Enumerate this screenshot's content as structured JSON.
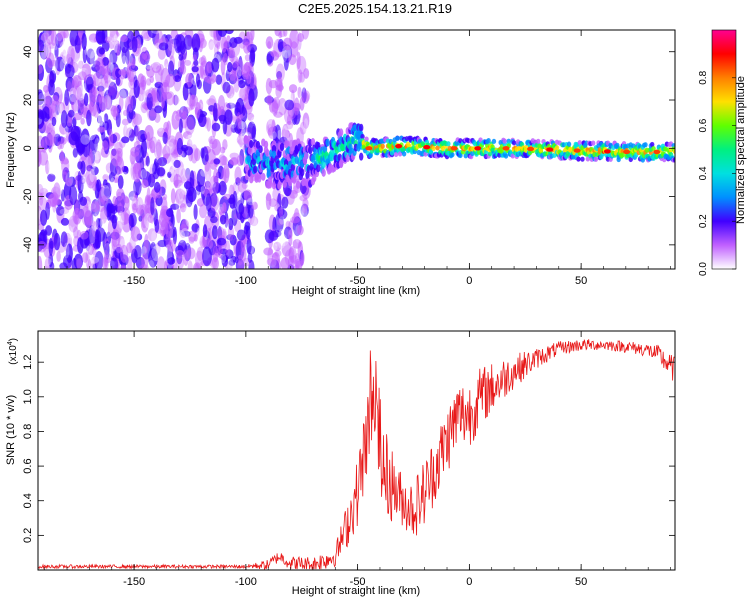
{
  "title": "C2E5.2025.154.13.21.R19",
  "chart_data": [
    {
      "type": "heatmap",
      "xlabel": "Height of straight line (km)",
      "ylabel": "Frequency (Hz)",
      "xlim": [
        -193,
        92
      ],
      "ylim": [
        -50,
        49
      ],
      "xticks": [
        -150,
        -100,
        -50,
        0,
        50
      ],
      "yticks": [
        -40,
        -20,
        0,
        20,
        40
      ],
      "colorbar": {
        "label": "Normalized spectral amplitude",
        "range": [
          0,
          1
        ],
        "ticks": [
          "0.0",
          "0.2",
          "0.4",
          "0.6",
          "0.8"
        ],
        "colors": [
          "#ffffff",
          "#c060ff",
          "#4000ff",
          "#0090ff",
          "#00e0e0",
          "#00f080",
          "#60ff00",
          "#ffe000",
          "#ff8000",
          "#ff0000",
          "#ff0090"
        ]
      },
      "regions": [
        {
          "x": [
            -193,
            -96
          ],
          "y": [
            -50,
            49
          ],
          "amplitude": 0.2,
          "desc": "scattered noise"
        },
        {
          "x": [
            -90,
            -72
          ],
          "y": [
            -50,
            49
          ],
          "amplitude": 0.15
        },
        {
          "x": [
            -95,
            -70
          ],
          "y": [
            -10,
            5
          ],
          "amplitude": 0.35
        },
        {
          "x": [
            -70,
            -48
          ],
          "y": [
            -5,
            8
          ],
          "amplitude": 0.45
        },
        {
          "x": [
            -48,
            92
          ],
          "y": [
            -3,
            3
          ],
          "amplitude": 0.8
        }
      ],
      "ridge": [
        [
          -193,
          -12
        ],
        [
          -150,
          -8
        ],
        [
          -100,
          -5
        ],
        [
          -85,
          -7
        ],
        [
          -70,
          -6
        ],
        [
          -60,
          -1
        ],
        [
          -50,
          4
        ],
        [
          -45,
          0
        ],
        [
          -30,
          1
        ],
        [
          -10,
          0
        ],
        [
          0,
          0
        ],
        [
          20,
          0
        ],
        [
          50,
          -1
        ],
        [
          70,
          -1.5
        ],
        [
          92,
          -1.5
        ]
      ]
    },
    {
      "type": "line",
      "xlabel": "Height of straight line (km)",
      "ylabel": "SNR (10 * v/v)",
      "yexponent": "(x10",
      "yexponent_power": "4",
      "yexponent_close": ")",
      "xlim": [
        -193,
        92
      ],
      "ylim": [
        0,
        1.38
      ],
      "xticks": [
        -150,
        -100,
        -50,
        0,
        50
      ],
      "yticks": [
        0.2,
        0.4,
        0.6,
        0.8,
        1.0,
        1.2
      ],
      "ytick_labels": [
        "0.2",
        "0.4",
        "0.6",
        "0.8",
        "1.0",
        "1.2"
      ],
      "series": [
        {
          "color": "#e81818",
          "envelope": [
            [
              -193,
              0.02
            ],
            [
              -100,
              0.02
            ],
            [
              -90,
              0.03
            ],
            [
              -85,
              0.08
            ],
            [
              -80,
              0.04
            ],
            [
              -70,
              0.03
            ],
            [
              -60,
              0.08
            ],
            [
              -55,
              0.25
            ],
            [
              -50,
              0.45
            ],
            [
              -45,
              0.85
            ],
            [
              -42,
              1.1
            ],
            [
              -40,
              0.6
            ],
            [
              -35,
              0.5
            ],
            [
              -30,
              0.4
            ],
            [
              -25,
              0.35
            ],
            [
              -20,
              0.45
            ],
            [
              -15,
              0.6
            ],
            [
              -10,
              0.75
            ],
            [
              -5,
              0.9
            ],
            [
              0,
              0.9
            ],
            [
              5,
              1.0
            ],
            [
              10,
              1.05
            ],
            [
              15,
              1.1
            ],
            [
              20,
              1.15
            ],
            [
              30,
              1.22
            ],
            [
              40,
              1.28
            ],
            [
              50,
              1.3
            ],
            [
              60,
              1.3
            ],
            [
              70,
              1.29
            ],
            [
              80,
              1.27
            ],
            [
              85,
              1.24
            ],
            [
              88,
              1.2
            ],
            [
              92,
              1.15
            ]
          ],
          "noise": [
            [
              -193,
              0.01
            ],
            [
              -100,
              0.01
            ],
            [
              -90,
              0.03
            ],
            [
              -60,
              0.06
            ],
            [
              -50,
              0.2
            ],
            [
              -40,
              0.3
            ],
            [
              -30,
              0.15
            ],
            [
              -20,
              0.2
            ],
            [
              -10,
              0.2
            ],
            [
              0,
              0.2
            ],
            [
              10,
              0.15
            ],
            [
              20,
              0.1
            ],
            [
              30,
              0.06
            ],
            [
              40,
              0.04
            ],
            [
              60,
              0.03
            ],
            [
              80,
              0.04
            ],
            [
              92,
              0.08
            ]
          ]
        }
      ]
    }
  ]
}
